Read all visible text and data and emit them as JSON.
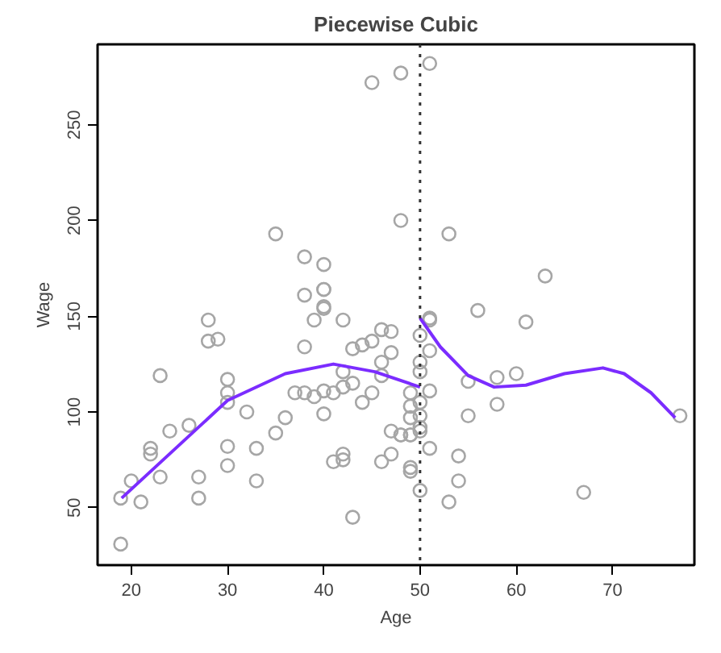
{
  "chart_data": {
    "type": "scatter",
    "title": "Piecewise Cubic",
    "xlabel": "Age",
    "ylabel": "Wage",
    "xlim": [
      16.5,
      78.5
    ],
    "ylim": [
      20,
      292
    ],
    "xticks": [
      20,
      30,
      40,
      50,
      60,
      70
    ],
    "yticks": [
      50,
      100,
      150,
      200,
      250
    ],
    "grid": false,
    "ref_lines": [
      {
        "axis": "x",
        "value": 50,
        "color": "#333333",
        "line_style": "dotted"
      }
    ],
    "series": [
      {
        "marker": "circle",
        "color": "#a6a6a6",
        "x": [
          18.9,
          18.9,
          21,
          20,
          23,
          23,
          22,
          22,
          24,
          26,
          27,
          27,
          28,
          28,
          29,
          30,
          30,
          30,
          30,
          30,
          32,
          33,
          33,
          35,
          36,
          38,
          38,
          37,
          38,
          39,
          39,
          40,
          40,
          40,
          41,
          40,
          42,
          42,
          42,
          43,
          43,
          41,
          42,
          42,
          43,
          44,
          45,
          46,
          47,
          47,
          46,
          46,
          44,
          45,
          47,
          48,
          49,
          46,
          47,
          49,
          50,
          50,
          50,
          50,
          50,
          50,
          50,
          51,
          45,
          48,
          48,
          35,
          38,
          40,
          40,
          40,
          51,
          53,
          63,
          56,
          61,
          51,
          51,
          51,
          49,
          49,
          49,
          50,
          55,
          58,
          60,
          58,
          55,
          48,
          49,
          51,
          54,
          54,
          49,
          53,
          67,
          77
        ],
        "values": [
          31,
          55,
          53,
          64,
          119,
          66,
          81,
          78,
          90,
          93,
          66,
          55,
          148,
          137,
          138,
          117,
          110,
          105,
          82,
          72,
          100,
          81,
          64,
          89,
          97,
          161,
          134,
          110,
          110,
          108,
          148,
          154,
          99,
          111,
          110,
          164,
          148,
          121,
          113,
          115,
          45,
          74,
          78,
          75,
          133,
          135,
          137,
          143,
          142,
          131,
          126,
          119,
          105,
          110,
          90,
          88,
          88,
          74,
          78,
          71,
          140,
          126,
          121,
          105,
          98,
          92,
          59,
          149,
          272,
          277,
          200,
          193,
          181,
          177,
          164,
          155,
          282,
          193,
          171,
          153,
          147,
          148,
          132,
          111,
          110,
          103,
          97,
          90,
          116,
          118,
          120,
          104,
          98,
          88,
          88,
          81,
          77,
          64,
          69,
          53,
          58,
          98
        ]
      },
      {
        "type": "line",
        "line_style": "solid",
        "color": "#7b2cff",
        "x": [
          19,
          30,
          36,
          41,
          45.3,
          50
        ],
        "values": [
          55,
          106,
          120,
          125,
          121,
          113
        ]
      },
      {
        "type": "line",
        "line_style": "solid",
        "color": "#7b2cff",
        "x": [
          50,
          52.1,
          55,
          57.7,
          61,
          65,
          69,
          71.2,
          74,
          76.5
        ],
        "values": [
          149,
          134,
          119,
          113,
          114,
          120,
          123,
          120,
          110,
          97
        ]
      }
    ]
  }
}
